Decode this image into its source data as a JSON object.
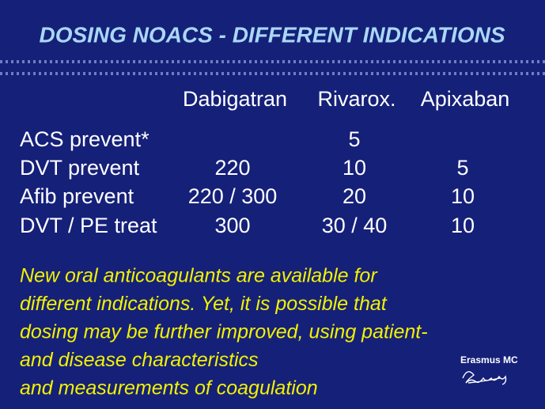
{
  "header": {
    "title": "DOSING NOACS - DIFFERENT INDICATIONS"
  },
  "table": {
    "columns": [
      "Dabigatran",
      "Rivarox.",
      "Apixaban"
    ],
    "rows": [
      [
        "ACS prevent*",
        null,
        "5",
        null
      ],
      [
        "DVT prevent",
        "220",
        "10",
        "5"
      ],
      [
        "Afib prevent",
        "220 / 300",
        "20",
        "10"
      ],
      [
        "DVT / PE treat",
        "300",
        "30 / 40",
        "10"
      ]
    ]
  },
  "note": {
    "lines": [
      "New oral anticoagulants are available for",
      "different indications. Yet, it is possible that",
      "dosing may be further improved, using patient-",
      "and disease characteristics",
      "and measurements of coagulation"
    ]
  },
  "logo": {
    "text": "Erasmus MC"
  }
}
